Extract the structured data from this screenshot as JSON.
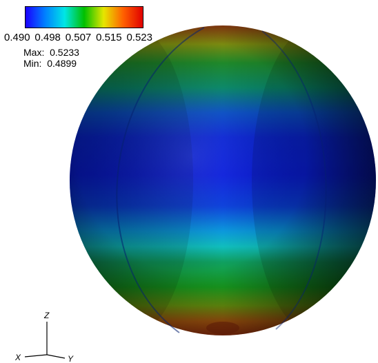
{
  "legend": {
    "gradient": [
      "#1a00ff",
      "#0080ff",
      "#00e6e6",
      "#00c000",
      "#e6e600",
      "#ff6000",
      "#e00000"
    ],
    "ticks": [
      "0.490",
      "0.498",
      "0.507",
      "0.515",
      "0.523"
    ],
    "max_label": "Max:",
    "max_value": "0.5233",
    "min_label": "Min:",
    "min_value": "0.4899"
  },
  "axes": {
    "x": "X",
    "y": "Y",
    "z": "Z"
  }
}
